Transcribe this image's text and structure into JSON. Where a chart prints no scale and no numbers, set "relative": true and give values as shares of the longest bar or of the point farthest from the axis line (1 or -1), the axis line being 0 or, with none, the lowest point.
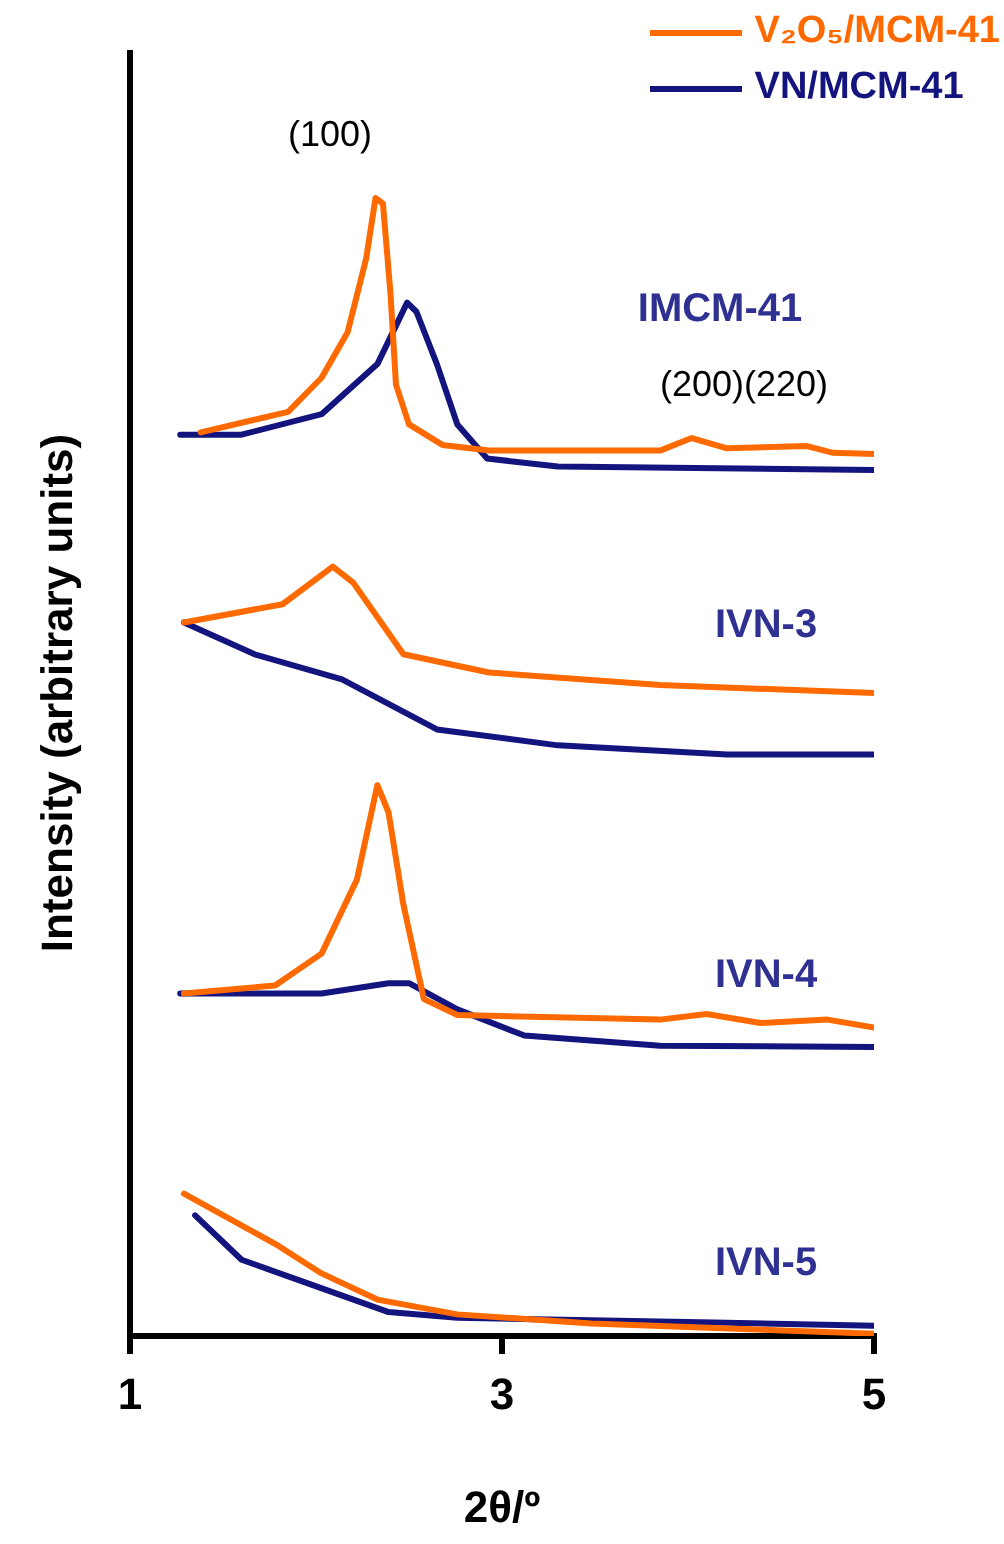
{
  "chart_data": {
    "type": "line",
    "relative": true,
    "xlabel": "2θ/º",
    "ylabel": "Intensity (arbitrary units)",
    "xlim": [
      1,
      5
    ],
    "xticks": [
      1,
      3,
      5
    ],
    "grid": false,
    "legend": "top right",
    "marker": "none",
    "line_style": "solid",
    "series": [
      {
        "name": "V₂O₅/MCM-41",
        "color": "#ff6a00",
        "x": [
          1.38,
          1.85,
          2.03,
          2.17,
          2.27,
          2.32,
          2.36,
          2.4,
          2.43,
          2.5,
          2.68,
          2.93,
          3.85,
          4.02,
          4.21,
          4.64,
          4.78,
          5.0
        ],
        "values": [
          0.794,
          0.812,
          0.842,
          0.882,
          0.947,
          1.0,
          0.995,
          0.917,
          0.836,
          0.801,
          0.783,
          0.778,
          0.778,
          0.789,
          0.78,
          0.782,
          0.776,
          0.775
        ]
      },
      {
        "name": "VN/MCM-41",
        "color": "#14147e",
        "x": [
          1.27,
          1.6,
          2.03,
          2.33,
          2.49,
          2.54,
          2.65,
          2.76,
          2.92,
          3.3,
          5.0
        ],
        "values": [
          0.792,
          0.792,
          0.81,
          0.854,
          0.908,
          0.9,
          0.854,
          0.801,
          0.771,
          0.764,
          0.761
        ]
      },
      {
        "color": "#ff6a00",
        "x": [
          1.29,
          1.82,
          2.09,
          2.2,
          2.47,
          2.93,
          3.85,
          5.0
        ],
        "values": [
          0.627,
          0.643,
          0.676,
          0.662,
          0.599,
          0.583,
          0.572,
          0.565
        ]
      },
      {
        "color": "#14147e",
        "x": [
          1.29,
          1.67,
          2.14,
          2.65,
          3.3,
          4.21,
          5.0
        ],
        "values": [
          0.627,
          0.599,
          0.577,
          0.533,
          0.519,
          0.511,
          0.511
        ]
      },
      {
        "color": "#ff6a00",
        "x": [
          1.29,
          1.78,
          2.03,
          2.22,
          2.33,
          2.39,
          2.47,
          2.58,
          2.76,
          3.85,
          4.1,
          4.39,
          4.75,
          5.0
        ],
        "values": [
          0.301,
          0.308,
          0.336,
          0.401,
          0.484,
          0.46,
          0.379,
          0.296,
          0.282,
          0.278,
          0.283,
          0.275,
          0.278,
          0.271
        ]
      },
      {
        "color": "#14147e",
        "x": [
          1.27,
          2.03,
          2.39,
          2.5,
          2.76,
          3.12,
          3.85,
          5.0
        ],
        "values": [
          0.301,
          0.301,
          0.31,
          0.31,
          0.287,
          0.264,
          0.255,
          0.254
        ]
      },
      {
        "color": "#ff6a00",
        "x": [
          1.29,
          1.78,
          2.03,
          2.33,
          2.76,
          3.48,
          5.0
        ],
        "values": [
          0.125,
          0.081,
          0.055,
          0.032,
          0.019,
          0.011,
          0.002
        ]
      },
      {
        "color": "#14147e",
        "x": [
          1.35,
          1.6,
          1.96,
          2.39,
          2.76,
          4.07,
          5.0
        ],
        "values": [
          0.106,
          0.067,
          0.046,
          0.021,
          0.016,
          0.012,
          0.009
        ]
      }
    ],
    "annotations": [
      "(100)",
      "(200)(220)",
      "IMCM-41",
      "IVN-3",
      "IVN-4",
      "IVN-5"
    ]
  }
}
